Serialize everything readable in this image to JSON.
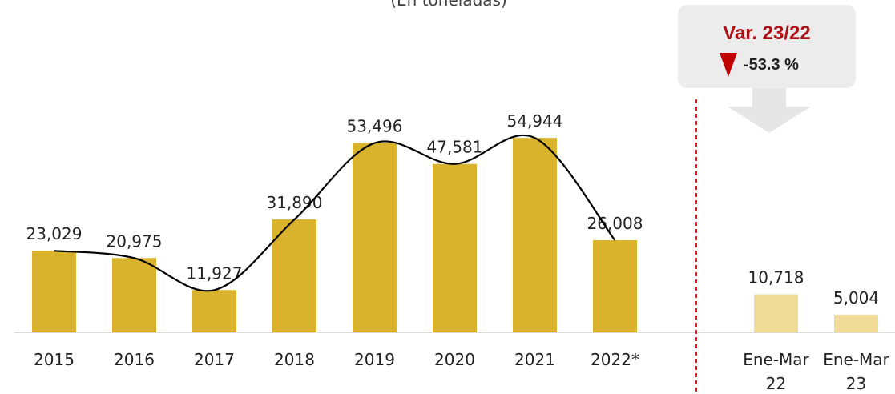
{
  "subtitle": "(En toneladas)",
  "callout": {
    "title": "Var. 23/22",
    "value": "-53.3 %",
    "icon": "down-triangle-icon",
    "title_color": "#b01116",
    "icon_color": "#c00000"
  },
  "colors": {
    "annual_bar": "#d9b32c",
    "quarter_bar": "#f0dc96",
    "divider": "#e02020",
    "trend_line": "#000000"
  },
  "chart_data": [
    {
      "type": "bar",
      "categories": [
        "2015",
        "2016",
        "2017",
        "2018",
        "2019",
        "2020",
        "2021",
        "2022*"
      ],
      "values": [
        23029,
        20975,
        11927,
        31890,
        53496,
        47581,
        54944,
        26008
      ],
      "labels": [
        "23,029",
        "20,975",
        "11,927",
        "31,890",
        "53,496",
        "47,581",
        "54,944",
        "26,008"
      ],
      "overlay": "smoothed trend line through bar tops",
      "ylim": [
        0,
        60000
      ],
      "grid": false
    },
    {
      "type": "bar",
      "categories": [
        [
          "Ene-Mar",
          "22"
        ],
        [
          "Ene-Mar",
          "23"
        ]
      ],
      "values": [
        10718,
        5004
      ],
      "labels": [
        "10,718",
        "5,004"
      ],
      "ylim": [
        0,
        60000
      ],
      "grid": false
    }
  ]
}
